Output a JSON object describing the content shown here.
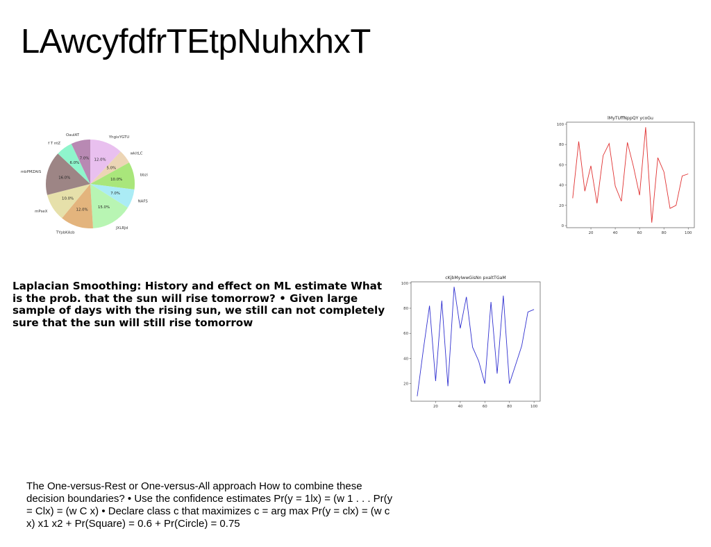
{
  "page": {
    "title": "LAwcyfdfrTEtpNuhxhxT",
    "bold_paragraph": "Laplacian Smoothing: History and effect on ML estimate What is the prob. that the sun will rise tomorrow? • Given large sample of days with the rising sun, we still can not completely sure that the sun will still rise tomorrow",
    "plain_paragraph": "The One-versus-Rest or One-versus-All approach How to combine these decision boundaries? • Use the confidence estimates Pr(y = 1lx) = \u001a(w\u001a 1 . . . Pr(y = Clx) = \u001a(w\u001a C x) • Declare class c\u001a that maximizes c\u001a = arg max Pr(y = clx) = \u001a(w\u001a c x) x1 x2 + Pr(Square) = 0.6 + Pr(Circle) = 0.75"
  },
  "chart_data": [
    {
      "type": "pie",
      "title": "",
      "start_angle_deg": 90,
      "direction": "clockwise",
      "labels": [
        "YhgixYGTU",
        "wkitLC",
        "bbzi",
        "NAFS",
        "JXLRJd",
        "TYpbKAsb",
        "mPseX",
        "mbPMZAtS",
        "f T ntZ",
        "OauIAT"
      ],
      "values": [
        12.0,
        5.0,
        10.0,
        7.0,
        15.0,
        12.0,
        10.0,
        16.0,
        6.0,
        7.0
      ],
      "value_labels": [
        "12.0%",
        "5.0%",
        "10.0%",
        "7.0%",
        "15.0%",
        "12.0%",
        "10.0%",
        "16.0%",
        "6.0%",
        "7.0%"
      ],
      "colors": [
        "#e9c0ef",
        "#ecd5b5",
        "#a9e67b",
        "#abecf5",
        "#b8f5b3",
        "#e3b47d",
        "#e6e0aa",
        "#9d8585",
        "#8ff5cc",
        "#b889b3"
      ]
    },
    {
      "type": "line",
      "title": "lMyTUffNppQY ycoGu",
      "color": "#e03030",
      "x": [
        5,
        10,
        15,
        20,
        25,
        30,
        35,
        40,
        45,
        50,
        55,
        60,
        65,
        70,
        75,
        80,
        85,
        90,
        95,
        100
      ],
      "y": [
        27,
        83,
        34,
        59,
        22,
        69,
        81,
        39,
        24,
        82,
        58,
        30,
        97,
        3,
        67,
        53,
        17,
        20,
        49,
        51
      ],
      "xticks": [
        20,
        40,
        60,
        80,
        100
      ],
      "yticks": [
        0,
        20,
        40,
        60,
        80,
        100
      ],
      "xlim": [
        0,
        105
      ],
      "ylim": [
        -2,
        102
      ],
      "grid": false
    },
    {
      "type": "line",
      "title": "cKjbMyIwwGisNn pxaltTGaM",
      "color": "#3030d0",
      "x": [
        5,
        10,
        15,
        20,
        25,
        30,
        35,
        40,
        45,
        50,
        55,
        60,
        65,
        70,
        75,
        80,
        85,
        90,
        95,
        100
      ],
      "y": [
        10,
        47,
        82,
        22,
        86,
        18,
        97,
        64,
        89,
        49,
        38,
        20,
        85,
        28,
        90,
        20,
        35,
        50,
        77,
        79
      ],
      "xticks": [
        20,
        40,
        60,
        80,
        100
      ],
      "yticks": [
        20,
        40,
        60,
        80,
        100
      ],
      "xlim": [
        0,
        105
      ],
      "ylim": [
        6,
        101
      ],
      "grid": false
    }
  ]
}
